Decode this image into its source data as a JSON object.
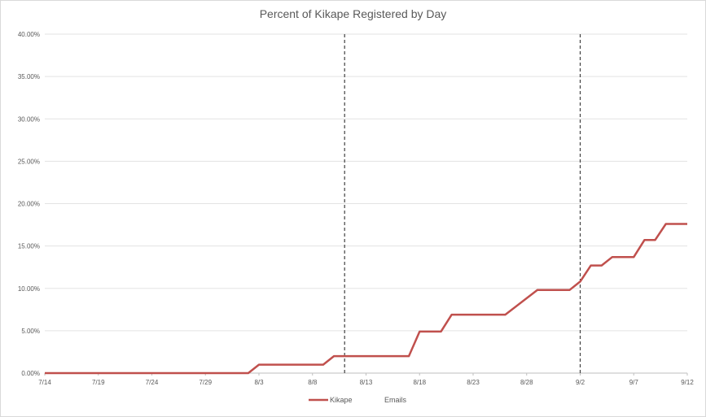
{
  "chart_data": {
    "type": "line",
    "title": "Percent of Kikape Registered by Day",
    "xlabel": "",
    "ylabel": "",
    "x_ticks": [
      "7/14",
      "7/19",
      "7/24",
      "7/29",
      "8/3",
      "8/8",
      "8/13",
      "8/18",
      "8/23",
      "8/28",
      "9/2",
      "9/7",
      "9/12"
    ],
    "y_ticks": [
      "0.00%",
      "5.00%",
      "10.00%",
      "15.00%",
      "20.00%",
      "25.00%",
      "30.00%",
      "35.00%",
      "40.00%"
    ],
    "ylim": [
      0,
      40
    ],
    "xlim": [
      "7/14",
      "9/12"
    ],
    "grid": "horizontal",
    "legend_position": "bottom",
    "series": [
      {
        "name": "Kikape",
        "color": "#c0504d",
        "points": [
          {
            "x": "7/14",
            "y": 0
          },
          {
            "x": "8/2",
            "y": 0
          },
          {
            "x": "8/3",
            "y": 1
          },
          {
            "x": "8/9",
            "y": 1
          },
          {
            "x": "8/10",
            "y": 2
          },
          {
            "x": "8/17",
            "y": 2
          },
          {
            "x": "8/18",
            "y": 4.9
          },
          {
            "x": "8/20",
            "y": 4.9
          },
          {
            "x": "8/21",
            "y": 6.9
          },
          {
            "x": "8/26",
            "y": 6.9
          },
          {
            "x": "8/29",
            "y": 9.8
          },
          {
            "x": "9/1",
            "y": 9.8
          },
          {
            "x": "9/2",
            "y": 10.8
          },
          {
            "x": "9/3",
            "y": 12.7
          },
          {
            "x": "9/4",
            "y": 12.7
          },
          {
            "x": "9/5",
            "y": 13.7
          },
          {
            "x": "9/7",
            "y": 13.7
          },
          {
            "x": "9/8",
            "y": 15.7
          },
          {
            "x": "9/9",
            "y": 15.7
          },
          {
            "x": "9/10",
            "y": 17.6
          },
          {
            "x": "9/12",
            "y": 17.6
          }
        ]
      },
      {
        "name": "Emails",
        "style": "dashed vertical markers",
        "color": "#404040",
        "x_positions": [
          "8/11",
          "9/2"
        ]
      }
    ]
  }
}
